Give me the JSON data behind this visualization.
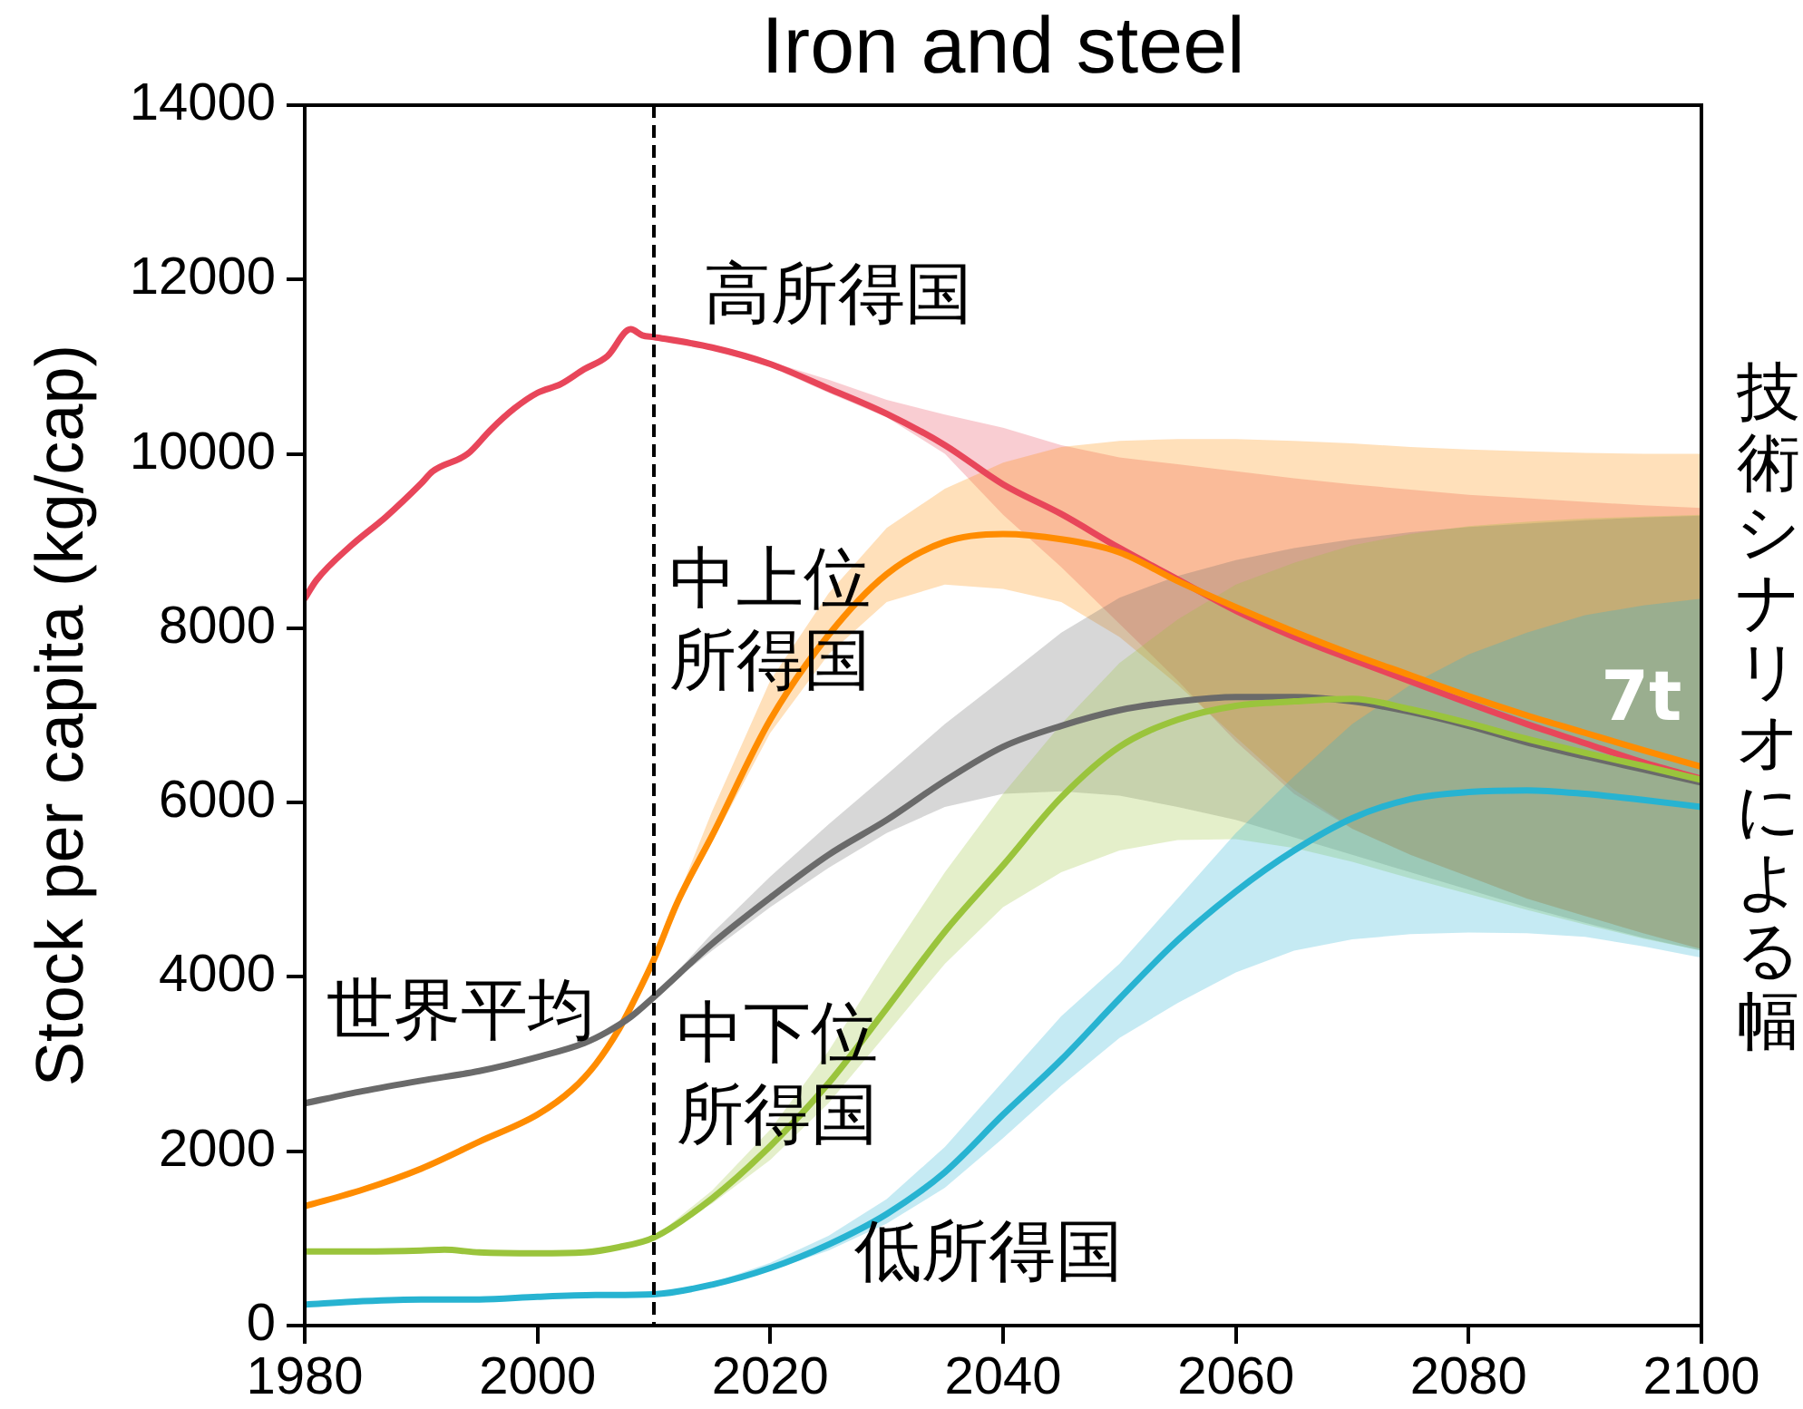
{
  "chart_data": {
    "type": "line",
    "title": "Iron and steel",
    "ylabel": "Stock per capita (kg/cap)",
    "xlim": [
      1980,
      2100
    ],
    "xticks": [
      1980,
      2000,
      2020,
      2040,
      2060,
      2080,
      2100
    ],
    "ylim": [
      0,
      14000
    ],
    "yticks": [
      0,
      2000,
      4000,
      6000,
      8000,
      10000,
      12000,
      14000
    ],
    "series": [
      {
        "name": "高所得国",
        "color": "#e8465a",
        "x": [
          1980,
          1981,
          1984,
          1987,
          1990,
          1991,
          1994,
          1996,
          1998,
          2000,
          2002,
          2004,
          2006,
          2008,
          2009,
          2010,
          2015,
          2020,
          2025,
          2030,
          2035,
          2040,
          2045,
          2050,
          2055,
          2060,
          2065,
          2070,
          2075,
          2080,
          2085,
          2090,
          2095,
          2100
        ],
        "values": [
          8340,
          8550,
          8950,
          9280,
          9660,
          9800,
          10000,
          10280,
          10520,
          10700,
          10800,
          10970,
          11120,
          11430,
          11360,
          11340,
          11220,
          11030,
          10750,
          10460,
          10100,
          9650,
          9310,
          8920,
          8560,
          8200,
          7900,
          7640,
          7390,
          7140,
          6900,
          6680,
          6460,
          6270
        ],
        "lower": [
          null,
          null,
          null,
          null,
          null,
          null,
          null,
          null,
          null,
          null,
          null,
          null,
          null,
          null,
          null,
          11340,
          11200,
          11000,
          10700,
          10420,
          10000,
          9300,
          8700,
          8050,
          7400,
          6700,
          6100,
          5700,
          5400,
          5150,
          4900,
          4700,
          4500,
          4320
        ],
        "upper": [
          null,
          null,
          null,
          null,
          null,
          null,
          null,
          null,
          null,
          null,
          null,
          null,
          null,
          null,
          null,
          11340,
          11240,
          11060,
          10850,
          10620,
          10450,
          10300,
          10100,
          9960,
          9880,
          9800,
          9720,
          9650,
          9590,
          9530,
          9490,
          9450,
          9410,
          9380
        ]
      },
      {
        "name": "中上位所得国",
        "color": "#ff8c00",
        "x": [
          1980,
          1985,
          1990,
          1995,
          2000,
          2003,
          2005,
          2007,
          2008,
          2010,
          2012,
          2015,
          2020,
          2025,
          2030,
          2035,
          2040,
          2045,
          2050,
          2055,
          2060,
          2065,
          2070,
          2075,
          2080,
          2085,
          2090,
          2095,
          2100
        ],
        "values": [
          1370,
          1560,
          1800,
          2110,
          2420,
          2710,
          3000,
          3400,
          3650,
          4200,
          4850,
          5620,
          6950,
          7920,
          8620,
          8990,
          9080,
          9020,
          8870,
          8540,
          8240,
          7960,
          7700,
          7460,
          7220,
          7000,
          6800,
          6600,
          6410
        ],
        "lower": [
          null,
          null,
          null,
          null,
          null,
          null,
          null,
          null,
          null,
          4200,
          4800,
          5550,
          6800,
          7700,
          8300,
          8500,
          8450,
          8300,
          7900,
          7350,
          6750,
          6150,
          5700,
          5400,
          5150,
          4900,
          4700,
          4500,
          4320
        ],
        "upper": [
          null,
          null,
          null,
          null,
          null,
          null,
          null,
          null,
          null,
          4200,
          4900,
          5900,
          7400,
          8400,
          9150,
          9600,
          9900,
          10080,
          10150,
          10170,
          10170,
          10150,
          10120,
          10080,
          10050,
          10030,
          10010,
          10000,
          10000
        ]
      },
      {
        "name": "世界平均",
        "color": "#6a6a6a",
        "x": [
          1980,
          1985,
          1990,
          1995,
          2000,
          2004,
          2006,
          2008,
          2010,
          2015,
          2020,
          2025,
          2030,
          2035,
          2040,
          2045,
          2050,
          2055,
          2060,
          2065,
          2070,
          2075,
          2080,
          2085,
          2090,
          2095,
          2100
        ],
        "values": [
          2550,
          2690,
          2810,
          2920,
          3080,
          3240,
          3370,
          3540,
          3770,
          4380,
          4910,
          5400,
          5800,
          6250,
          6640,
          6880,
          7060,
          7160,
          7210,
          7210,
          7160,
          7040,
          6880,
          6690,
          6530,
          6380,
          6230
        ],
        "lower": [
          null,
          null,
          null,
          null,
          null,
          null,
          null,
          null,
          3770,
          4300,
          4800,
          5250,
          5650,
          5950,
          6100,
          6130,
          6080,
          5950,
          5800,
          5600,
          5400,
          5200,
          5000,
          4800,
          4620,
          4450,
          4300
        ],
        "upper": [
          null,
          null,
          null,
          null,
          null,
          null,
          null,
          null,
          3770,
          4500,
          5150,
          5750,
          6320,
          6900,
          7420,
          7950,
          8350,
          8600,
          8780,
          8920,
          9020,
          9100,
          9160,
          9200,
          9240,
          9270,
          9290
        ]
      },
      {
        "name": "中下位所得国",
        "color": "#9ac43c",
        "x": [
          1980,
          1985,
          1990,
          1992,
          1995,
          2000,
          2004,
          2007,
          2010,
          2015,
          2020,
          2025,
          2030,
          2035,
          2040,
          2045,
          2050,
          2055,
          2060,
          2065,
          2070,
          2075,
          2080,
          2085,
          2090,
          2095,
          2100
        ],
        "values": [
          850,
          850,
          860,
          870,
          840,
          830,
          840,
          900,
          1010,
          1460,
          2060,
          2780,
          3640,
          4520,
          5280,
          6060,
          6640,
          6950,
          7110,
          7160,
          7190,
          7070,
          6910,
          6730,
          6570,
          6420,
          6260
        ],
        "lower": [
          null,
          null,
          null,
          null,
          null,
          null,
          null,
          null,
          1010,
          1400,
          1900,
          2550,
          3350,
          4150,
          4800,
          5200,
          5450,
          5570,
          5580,
          5480,
          5320,
          5130,
          4950,
          4770,
          4600,
          4440,
          4300
        ],
        "upper": [
          null,
          null,
          null,
          null,
          null,
          null,
          null,
          null,
          1010,
          1550,
          2250,
          3150,
          4200,
          5200,
          6100,
          6900,
          7600,
          8100,
          8500,
          8750,
          8950,
          9080,
          9170,
          9220,
          9260,
          9280,
          9300
        ]
      },
      {
        "name": "低所得国",
        "color": "#27b3d1",
        "x": [
          1980,
          1985,
          1990,
          1995,
          2000,
          2005,
          2010,
          2015,
          2020,
          2025,
          2030,
          2035,
          2040,
          2045,
          2050,
          2055,
          2060,
          2065,
          2070,
          2075,
          2080,
          2085,
          2090,
          2095,
          2100
        ],
        "values": [
          240,
          280,
          300,
          300,
          330,
          350,
          360,
          470,
          660,
          930,
          1280,
          1760,
          2420,
          3050,
          3750,
          4420,
          4980,
          5450,
          5820,
          6040,
          6120,
          6140,
          6100,
          6030,
          5950
        ],
        "lower": [
          null,
          null,
          null,
          null,
          null,
          null,
          360,
          450,
          630,
          860,
          1170,
          1580,
          2150,
          2750,
          3300,
          3700,
          4050,
          4300,
          4430,
          4490,
          4510,
          4500,
          4460,
          4350,
          4220
        ],
        "upper": [
          null,
          null,
          null,
          null,
          null,
          null,
          360,
          490,
          720,
          1030,
          1450,
          2050,
          2800,
          3550,
          4150,
          4900,
          5650,
          6300,
          6900,
          7350,
          7700,
          7950,
          8150,
          8260,
          8340
        ]
      }
    ],
    "ref_lines": [
      {
        "axis": "x",
        "value": 2010,
        "line_style": "dashed",
        "color": "#000000"
      }
    ],
    "annotations": [
      "7t",
      "技術シナリオによる幅"
    ]
  }
}
